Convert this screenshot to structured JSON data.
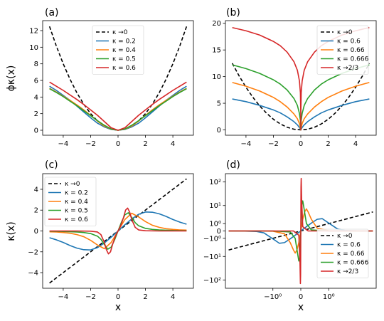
{
  "chart_data": [
    {
      "panel": "(a)",
      "type": "line",
      "xlim": [
        -5.5,
        5.5
      ],
      "ylim": [
        -0.6,
        13.2
      ],
      "xticks": [
        -4,
        -2,
        0,
        2,
        4
      ],
      "xtick_labels": [
        "−4",
        "−2",
        "0",
        "2",
        "4"
      ],
      "yticks": [
        0,
        2,
        4,
        6,
        8,
        10,
        12
      ],
      "ytick_labels": [
        "0",
        "2",
        "4",
        "6",
        "8",
        "10",
        "12"
      ],
      "ylabel": "ϕκ(x)",
      "xlabel": "",
      "legend": "top-center",
      "series": [
        {
          "name": "κ →0",
          "color": "#000000",
          "dashed": true,
          "x": [
            -5,
            -4.5,
            -4,
            -3.5,
            -3,
            -2.5,
            -2,
            -1.5,
            -1,
            -0.5,
            0,
            0.5,
            1,
            1.5,
            2,
            2.5,
            3,
            3.5,
            4,
            4.5,
            5
          ],
          "y": [
            12.5,
            10.13,
            8,
            6.13,
            4.5,
            3.13,
            2,
            1.13,
            0.5,
            0.13,
            0,
            0.13,
            0.5,
            1.13,
            2,
            3.13,
            4.5,
            6.13,
            8,
            10.13,
            12.5
          ]
        },
        {
          "name": "κ = 0.2",
          "color": "#1f77b4",
          "x": [
            -5,
            -4.5,
            -4,
            -3.5,
            -3,
            -2.5,
            -2,
            -1.5,
            -1,
            -0.5,
            0,
            0.5,
            1,
            1.5,
            2,
            2.5,
            3,
            3.5,
            4,
            4.5,
            5
          ],
          "y": [
            5.3,
            4.8,
            4.2,
            3.6,
            2.9,
            2.2,
            1.5,
            0.85,
            0.4,
            0.1,
            0,
            0.1,
            0.4,
            0.85,
            1.5,
            2.2,
            2.9,
            3.6,
            4.2,
            4.8,
            5.3
          ]
        },
        {
          "name": "κ = 0.4",
          "color": "#ff7f0e",
          "x": [
            -5,
            -4.5,
            -4,
            -3.5,
            -3,
            -2.5,
            -2,
            -1.5,
            -1,
            -0.5,
            0,
            0.5,
            1,
            1.5,
            2,
            2.5,
            3,
            3.5,
            4,
            4.5,
            5
          ],
          "y": [
            5.05,
            4.6,
            4.1,
            3.6,
            3.05,
            2.45,
            1.8,
            1.1,
            0.5,
            0.13,
            0,
            0.13,
            0.5,
            1.1,
            1.8,
            2.45,
            3.05,
            3.6,
            4.1,
            4.6,
            5.05
          ]
        },
        {
          "name": "κ = 0.5",
          "color": "#2ca02c",
          "x": [
            -5,
            -4.5,
            -4,
            -3.5,
            -3,
            -2.5,
            -2,
            -1.5,
            -1,
            -0.5,
            0,
            0.5,
            1,
            1.5,
            2,
            2.5,
            3,
            3.5,
            4,
            4.5,
            5
          ],
          "y": [
            5.0,
            4.55,
            4.05,
            3.5,
            2.95,
            2.35,
            1.75,
            1.15,
            0.6,
            0.15,
            0,
            0.15,
            0.6,
            1.15,
            1.75,
            2.35,
            2.95,
            3.5,
            4.05,
            4.55,
            5.0
          ]
        },
        {
          "name": "κ = 0.6",
          "color": "#d62728",
          "x": [
            -5,
            -4.5,
            -4,
            -3.5,
            -3,
            -2.5,
            -2,
            -1.5,
            -1,
            -0.5,
            0,
            0.5,
            1,
            1.5,
            2,
            2.5,
            3,
            3.5,
            4,
            4.5,
            5
          ],
          "y": [
            5.8,
            5.3,
            4.8,
            4.25,
            3.7,
            3.1,
            2.45,
            1.8,
            1.05,
            0.3,
            0,
            0.3,
            1.05,
            1.8,
            2.45,
            3.1,
            3.7,
            4.25,
            4.8,
            5.3,
            5.8
          ]
        }
      ]
    },
    {
      "panel": "(b)",
      "type": "line",
      "xlim": [
        -5.5,
        5.5
      ],
      "ylim": [
        -1.0,
        20.5
      ],
      "xticks": [
        -4,
        -2,
        0,
        2,
        4
      ],
      "xtick_labels": [
        "−4",
        "−2",
        "0",
        "2",
        "4"
      ],
      "yticks": [
        0,
        5,
        10,
        15,
        20
      ],
      "ytick_labels": [
        "0",
        "5",
        "10",
        "15",
        "20"
      ],
      "xlabel": "",
      "ylabel": "",
      "legend": "top-right",
      "series": [
        {
          "name": "κ →0",
          "color": "#000000",
          "dashed": true,
          "x": [
            -5,
            -4.5,
            -4,
            -3.5,
            -3,
            -2.5,
            -2,
            -1.5,
            -1,
            -0.5,
            0,
            0.5,
            1,
            1.5,
            2,
            2.5,
            3,
            3.5,
            4,
            4.5,
            5
          ],
          "y": [
            12.5,
            10.13,
            8,
            6.13,
            4.5,
            3.13,
            2,
            1.13,
            0.5,
            0.13,
            0,
            0.13,
            0.5,
            1.13,
            2,
            3.13,
            4.5,
            6.13,
            8,
            10.13,
            12.5
          ]
        },
        {
          "name": "κ = 0.6",
          "color": "#1f77b4",
          "x": [
            -5,
            -4,
            -3,
            -2,
            -1.5,
            -1,
            -0.5,
            -0.25,
            -0.1,
            0,
            0.1,
            0.25,
            0.5,
            1,
            1.5,
            2,
            3,
            4,
            5
          ],
          "y": [
            5.8,
            5.3,
            4.6,
            3.75,
            3.2,
            2.45,
            1.55,
            0.95,
            0.45,
            0,
            0.45,
            0.95,
            1.55,
            2.45,
            3.2,
            3.75,
            4.6,
            5.3,
            5.8
          ]
        },
        {
          "name": "κ = 0.66",
          "color": "#ff7f0e",
          "x": [
            -5,
            -4,
            -3,
            -2,
            -1.5,
            -1,
            -0.5,
            -0.25,
            -0.1,
            0,
            0.1,
            0.25,
            0.5,
            1,
            1.5,
            2,
            3,
            4,
            5
          ],
          "y": [
            8.9,
            8.2,
            7.3,
            6.1,
            5.3,
            4.3,
            3.0,
            2.1,
            1.2,
            0,
            1.2,
            2.1,
            3.0,
            4.3,
            5.3,
            6.1,
            7.3,
            8.2,
            8.9
          ]
        },
        {
          "name": "κ = 0.666",
          "color": "#2ca02c",
          "x": [
            -5,
            -4,
            -3,
            -2,
            -1.5,
            -1,
            -0.5,
            -0.25,
            -0.1,
            -0.03,
            0,
            0.03,
            0.1,
            0.25,
            0.5,
            1,
            1.5,
            2,
            3,
            4,
            5
          ],
          "y": [
            12.2,
            11.5,
            10.6,
            9.4,
            8.6,
            7.5,
            5.9,
            4.6,
            3.1,
            1.8,
            0,
            1.8,
            3.1,
            4.6,
            5.9,
            7.5,
            8.6,
            9.4,
            10.6,
            11.5,
            12.2
          ]
        },
        {
          "name": "κ →2/3",
          "color": "#d62728",
          "x": [
            -5,
            -4,
            -3,
            -2,
            -1.5,
            -1,
            -0.5,
            -0.25,
            -0.1,
            -0.03,
            -0.005,
            0,
            0.005,
            0.03,
            0.1,
            0.25,
            0.5,
            1,
            1.5,
            2,
            3,
            4,
            5
          ],
          "y": [
            19.2,
            18.6,
            17.8,
            16.6,
            15.8,
            14.6,
            12.8,
            11.2,
            9.2,
            7.0,
            3.5,
            0,
            3.5,
            7.0,
            9.2,
            11.2,
            12.8,
            14.6,
            15.8,
            16.6,
            17.8,
            18.6,
            19.2
          ]
        }
      ]
    },
    {
      "panel": "(c)",
      "type": "line",
      "xlim": [
        -5.5,
        5.5
      ],
      "ylim": [
        -5.5,
        5.5
      ],
      "xticks": [
        -4,
        -2,
        0,
        2,
        4
      ],
      "xtick_labels": [
        "−4",
        "−2",
        "0",
        "2",
        "4"
      ],
      "yticks": [
        -4,
        -2,
        0,
        2,
        4
      ],
      "ytick_labels": [
        "−4",
        "−2",
        "0",
        "2",
        "4"
      ],
      "xlabel": "x",
      "ylabel": "κ(x)",
      "legend": "top-left",
      "series": [
        {
          "name": "κ →0",
          "color": "#000000",
          "dashed": true,
          "x": [
            -5,
            5
          ],
          "y": [
            -5,
            5
          ]
        },
        {
          "name": "κ = 0.2",
          "color": "#1f77b4",
          "x": [
            -5,
            -4.5,
            -4,
            -3.5,
            -3,
            -2.5,
            -2,
            -1.5,
            -1,
            -0.5,
            0,
            0.5,
            1,
            1.5,
            2,
            2.5,
            3,
            3.5,
            4,
            4.5,
            5
          ],
          "y": [
            -0.65,
            -0.85,
            -1.1,
            -1.4,
            -1.65,
            -1.8,
            -1.82,
            -1.6,
            -1.15,
            -0.6,
            0,
            0.6,
            1.15,
            1.6,
            1.82,
            1.8,
            1.65,
            1.4,
            1.1,
            0.85,
            0.65
          ]
        },
        {
          "name": "κ = 0.4",
          "color": "#ff7f0e",
          "x": [
            -5,
            -4.5,
            -4,
            -3.5,
            -3,
            -2.5,
            -2,
            -1.5,
            -1,
            -0.5,
            0,
            0.5,
            1,
            1.5,
            2,
            2.5,
            3,
            3.5,
            4,
            4.5,
            5
          ],
          "y": [
            -0.08,
            -0.1,
            -0.15,
            -0.22,
            -0.35,
            -0.55,
            -0.9,
            -1.35,
            -1.7,
            -1.1,
            0,
            1.1,
            1.7,
            1.35,
            0.9,
            0.55,
            0.35,
            0.22,
            0.15,
            0.1,
            0.08
          ]
        },
        {
          "name": "κ = 0.5",
          "color": "#2ca02c",
          "x": [
            -5,
            -4.5,
            -4,
            -3.5,
            -3,
            -2.5,
            -2,
            -1.5,
            -1.25,
            -1,
            -0.75,
            -0.5,
            -0.25,
            0,
            0.25,
            0.5,
            0.75,
            1,
            1.25,
            1.5,
            2,
            2.5,
            3,
            3.5,
            4,
            4.5,
            5
          ],
          "y": [
            -0.02,
            -0.03,
            -0.05,
            -0.07,
            -0.1,
            -0.15,
            -0.25,
            -0.5,
            -0.8,
            -1.3,
            -1.75,
            -1.55,
            -0.85,
            0,
            0.85,
            1.55,
            1.75,
            1.3,
            0.8,
            0.5,
            0.25,
            0.15,
            0.1,
            0.07,
            0.05,
            0.03,
            0.02
          ]
        },
        {
          "name": "κ = 0.6",
          "color": "#d62728",
          "x": [
            -5,
            -4,
            -3,
            -2,
            -1.5,
            -1.25,
            -1,
            -0.85,
            -0.7,
            -0.55,
            -0.4,
            -0.25,
            -0.12,
            0,
            0.12,
            0.25,
            0.4,
            0.55,
            0.7,
            0.85,
            1,
            1.25,
            1.5,
            2,
            3,
            4,
            5
          ],
          "y": [
            0,
            0,
            0,
            -0.02,
            -0.1,
            -0.35,
            -1.1,
            -1.8,
            -2.2,
            -2.0,
            -1.3,
            -0.7,
            -0.3,
            0,
            0.3,
            0.7,
            1.3,
            2.0,
            2.2,
            1.8,
            1.1,
            0.35,
            0.1,
            0.02,
            0,
            0,
            0
          ]
        }
      ]
    },
    {
      "panel": "(d)",
      "type": "line",
      "xscale": "symlog",
      "yscale": "symlog",
      "xlim": [
        -5.5,
        5.5
      ],
      "ylim": [
        -220,
        220
      ],
      "xticks": [
        -1,
        0,
        1
      ],
      "xtick_labels": [
        "−10⁰",
        "0",
        "10⁰"
      ],
      "yticks": [
        -100,
        -10,
        -1,
        0,
        1,
        10,
        100
      ],
      "ytick_labels": [
        "−10²",
        "−10¹",
        "−10⁰",
        "0",
        "10⁰",
        "10¹",
        "10²"
      ],
      "xlabel": "x",
      "ylabel": "",
      "legend": "bottom-right",
      "series": [
        {
          "name": "κ →0",
          "color": "#000000",
          "dashed": true,
          "x": [
            -5,
            -3,
            -1.5,
            -1,
            -0.5,
            0,
            0.5,
            1,
            1.5,
            3,
            5
          ],
          "y": [
            -5,
            -3,
            -1.5,
            -1,
            -0.5,
            0,
            0.5,
            1,
            1.5,
            3,
            5
          ]
        },
        {
          "name": "κ = 0.6",
          "color": "#1f77b4",
          "x": [
            -5,
            -3,
            -2,
            -1.5,
            -1,
            -0.7,
            -0.5,
            -0.3,
            -0.15,
            0,
            0.15,
            0.3,
            0.5,
            0.7,
            1,
            1.5,
            2,
            3,
            5
          ],
          "y": [
            0,
            -0.01,
            -0.05,
            -0.2,
            -1.1,
            -2.2,
            -2.0,
            -1.1,
            -0.5,
            0,
            0.5,
            1.1,
            2.0,
            2.2,
            1.1,
            0.2,
            0.05,
            0.01,
            0
          ]
        },
        {
          "name": "κ = 0.66",
          "color": "#ff7f0e",
          "x": [
            -5,
            -2,
            -1,
            -0.5,
            -0.3,
            -0.2,
            -0.15,
            -0.1,
            -0.05,
            0,
            0.05,
            0.1,
            0.15,
            0.2,
            0.3,
            0.5,
            1,
            2,
            5
          ],
          "y": [
            0,
            0,
            -0.02,
            -0.3,
            -2,
            -5,
            -7,
            -5,
            -2,
            0,
            2,
            5,
            7,
            5,
            2,
            0.3,
            0.02,
            0,
            0
          ]
        },
        {
          "name": "κ = 0.666",
          "color": "#2ca02c",
          "x": [
            -5,
            -1,
            -0.3,
            -0.15,
            -0.08,
            -0.05,
            -0.03,
            -0.015,
            0,
            0.015,
            0.03,
            0.05,
            0.08,
            0.15,
            0.3,
            1,
            5
          ],
          "y": [
            0,
            0,
            -0.1,
            -1,
            -8,
            -16,
            -12,
            -4,
            0,
            4,
            12,
            16,
            8,
            1,
            0.1,
            0,
            0
          ]
        },
        {
          "name": "κ →2/3",
          "color": "#d62728",
          "x": [
            -5,
            -0.2,
            -0.05,
            -0.02,
            -0.01,
            -0.005,
            0,
            0.005,
            0.01,
            0.02,
            0.05,
            0.2,
            5
          ],
          "y": [
            0,
            0,
            -0.5,
            -20,
            -140,
            -60,
            0,
            60,
            140,
            20,
            0.5,
            0,
            0
          ]
        }
      ]
    }
  ]
}
